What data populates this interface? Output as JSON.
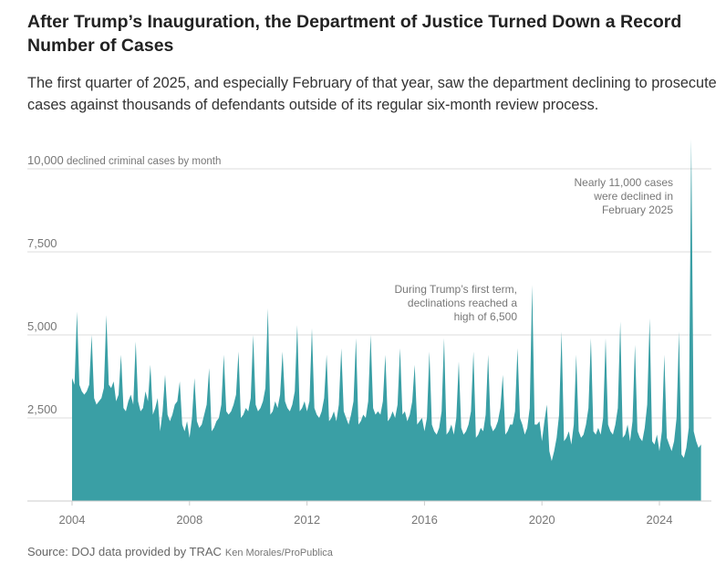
{
  "title": "After Trump’s Inauguration, the Department of Justice Turned Down a Record Number of Cases",
  "subtitle": "The first quarter of 2025, and especially February of that year, saw the department declining to prosecute cases against thousands of defendants outside of its regular six-month review process.",
  "source": "Source: DOJ data provided by TRAC",
  "credit": "Ken Morales/ProPublica",
  "chart_data": {
    "type": "area",
    "title": "",
    "ylabel": "declined criminal cases by month",
    "xlabel": "",
    "ylim": [
      0,
      11000
    ],
    "xlim": [
      "2004-01",
      "2025-06"
    ],
    "grid": true,
    "yticks": [
      2500,
      5000,
      7500,
      10000
    ],
    "ytick_labels": [
      "2,500",
      "5,000",
      "7,500",
      "10,000"
    ],
    "xticks": [
      2004,
      2008,
      2012,
      2016,
      2020,
      2024
    ],
    "xtick_labels": [
      "2004",
      "2008",
      "2012",
      "2016",
      "2020",
      "2024"
    ],
    "color": "#3a9fa5",
    "start": "2004-01",
    "frequency": "monthly",
    "annotations": [
      {
        "lines": [
          "Nearly 11,000 cases",
          "were declined in",
          "February 2025"
        ],
        "target": "2025-02"
      },
      {
        "lines": [
          "During Trump’s first term,",
          "declinations reached a",
          "high of 6,500"
        ],
        "target": "2019-09"
      }
    ],
    "values_by_year": {
      "2004": [
        3700,
        3500,
        5700,
        3500,
        3300,
        3200,
        3300,
        3500,
        5000,
        3100,
        2900,
        3000
      ],
      "2005": [
        3100,
        3400,
        5600,
        3500,
        3400,
        3600,
        3000,
        3200,
        4400,
        2800,
        2700,
        3000
      ],
      "2006": [
        3200,
        2900,
        4800,
        3000,
        2700,
        2800,
        3300,
        3000,
        4100,
        2600,
        2800,
        3100
      ],
      "2007": [
        2100,
        2700,
        3800,
        2600,
        2400,
        2600,
        2900,
        3000,
        3600,
        2300,
        2100,
        2400
      ],
      "2008": [
        1900,
        2500,
        3700,
        2400,
        2200,
        2300,
        2600,
        2900,
        4000,
        2100,
        2200,
        2400
      ],
      "2009": [
        2500,
        2900,
        4400,
        2700,
        2600,
        2700,
        2900,
        3200,
        4500,
        2500,
        2600,
        2800
      ],
      "2010": [
        2700,
        3100,
        5000,
        2900,
        2700,
        2800,
        3000,
        3400,
        5800,
        2600,
        2700,
        3000
      ],
      "2011": [
        2800,
        3200,
        4500,
        3000,
        2800,
        2700,
        2900,
        3300,
        5300,
        2700,
        2800,
        3000
      ],
      "2012": [
        2700,
        3000,
        5200,
        2800,
        2600,
        2500,
        2700,
        3100,
        4400,
        2400,
        2500,
        2700
      ],
      "2013": [
        2400,
        2900,
        4600,
        2700,
        2500,
        2300,
        2600,
        3000,
        4900,
        2300,
        2400,
        2600
      ],
      "2014": [
        2500,
        3000,
        5000,
        2800,
        2600,
        2700,
        2600,
        3000,
        4400,
        2400,
        2500,
        2700
      ],
      "2015": [
        2500,
        2900,
        4600,
        2600,
        2700,
        2400,
        2600,
        3000,
        4100,
        2300,
        2400,
        2500
      ],
      "2016": [
        2100,
        2500,
        4500,
        2300,
        2100,
        2000,
        2200,
        2700,
        4900,
        2000,
        2100,
        2300
      ],
      "2017": [
        2000,
        2500,
        4200,
        2200,
        2000,
        2100,
        2300,
        2700,
        4500,
        1900,
        2000,
        2200
      ],
      "2018": [
        2100,
        2600,
        4400,
        2300,
        2100,
        2200,
        2400,
        2800,
        3800,
        2000,
        2100,
        2300
      ],
      "2019": [
        2300,
        2700,
        4600,
        2500,
        2300,
        2000,
        2200,
        2800,
        6500,
        2300,
        2300,
        2400
      ],
      "2020": [
        1800,
        2400,
        2900,
        1500,
        1200,
        1500,
        1900,
        2600,
        5100,
        1800,
        1900,
        2100
      ],
      "2021": [
        1700,
        2300,
        4400,
        2100,
        1900,
        2000,
        2300,
        2800,
        4900,
        2100,
        2000,
        2200
      ],
      "2022": [
        2000,
        2500,
        4900,
        2300,
        2100,
        2000,
        2300,
        2800,
        5400,
        1900,
        2000,
        2300
      ],
      "2023": [
        1800,
        2400,
        4700,
        2100,
        1900,
        1800,
        2200,
        2900,
        5500,
        1800,
        1700,
        2000
      ],
      "2024": [
        1500,
        2100,
        4400,
        1900,
        1700,
        1500,
        1800,
        2500,
        5100,
        1400,
        1300,
        1600
      ],
      "2025": [
        2200,
        10900,
        2100,
        1800,
        1600,
        1700
      ]
    }
  }
}
